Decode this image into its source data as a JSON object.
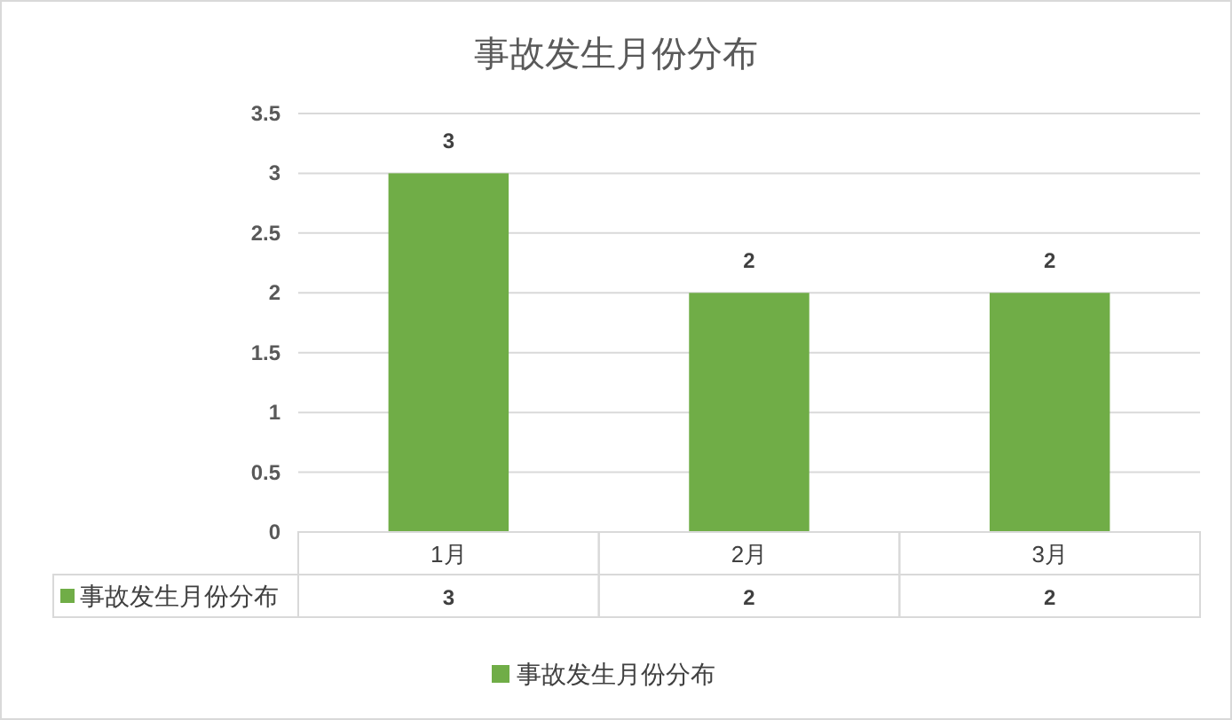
{
  "chart_data": {
    "type": "bar",
    "title": "事故发生月份分布",
    "categories": [
      "1月",
      "2月",
      "3月"
    ],
    "series": [
      {
        "name": "事故发生月份分布",
        "color": "#70ad47",
        "values": [
          3,
          2,
          2
        ],
        "value_labels": [
          "3",
          "2",
          "2"
        ]
      }
    ],
    "ylim": [
      0,
      3.5
    ],
    "yticks": [
      0,
      0.5,
      1,
      1.5,
      2,
      2.5,
      3,
      3.5
    ],
    "annotations": [
      {
        "text": "3",
        "x": "1月",
        "y": 3
      },
      {
        "text": "2",
        "x": "2月",
        "y": 2
      },
      {
        "text": "2",
        "x": "3月",
        "y": 2
      }
    ],
    "grid": "y",
    "legend": "bottom",
    "data_labels": true
  }
}
